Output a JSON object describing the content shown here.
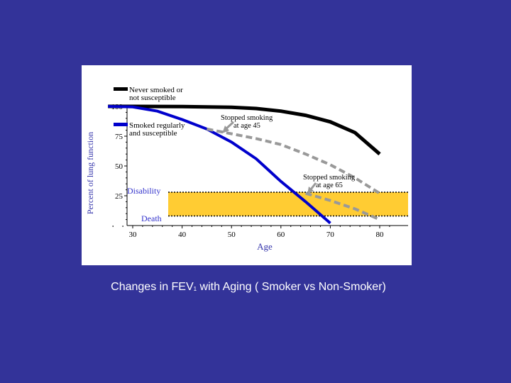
{
  "caption": {
    "prefix": "Changes in  FEV",
    "subscript": "1",
    "suffix": " with Aging ( Smoker vs Non-Smoker)"
  },
  "chart_data": {
    "type": "line",
    "xlabel": "Age",
    "ylabel": "Percent of lung function",
    "xlim": [
      25,
      80
    ],
    "ylim": [
      0,
      100
    ],
    "x_ticks": [
      30,
      40,
      50,
      60,
      70,
      80
    ],
    "y_ticks": [
      25,
      50,
      75,
      100
    ],
    "legend": {
      "never_smoked": [
        "Never smoked or",
        "not susceptible"
      ],
      "smoked": [
        "Smoked regularly",
        "and susceptible"
      ]
    },
    "series": [
      {
        "name": "Never smoked or not susceptible",
        "color": "#000000",
        "style": "solid",
        "points": [
          [
            25,
            100
          ],
          [
            30,
            100
          ],
          [
            40,
            99.8
          ],
          [
            50,
            99.2
          ],
          [
            55,
            98.2
          ],
          [
            60,
            96
          ],
          [
            65,
            92.5
          ],
          [
            70,
            87
          ],
          [
            75,
            78
          ],
          [
            80,
            60
          ]
        ]
      },
      {
        "name": "Smoked regularly and susceptible",
        "color": "#0000cc",
        "style": "solid",
        "points": [
          [
            25,
            100
          ],
          [
            30,
            99.5
          ],
          [
            35,
            96
          ],
          [
            40,
            89
          ],
          [
            45,
            81
          ],
          [
            50,
            70
          ],
          [
            55,
            56
          ],
          [
            60,
            37
          ],
          [
            65,
            20
          ],
          [
            70,
            2
          ]
        ]
      },
      {
        "name": "Stopped smoking at age 45",
        "color": "#999999",
        "style": "dashed",
        "points": [
          [
            45,
            81
          ],
          [
            50,
            77
          ],
          [
            55,
            73
          ],
          [
            60,
            68
          ],
          [
            65,
            60
          ],
          [
            70,
            51
          ],
          [
            75,
            40
          ],
          [
            80,
            27
          ]
        ]
      },
      {
        "name": "Stopped smoking at age 65",
        "color": "#999999",
        "style": "dashed",
        "points": [
          [
            65,
            27
          ],
          [
            70,
            21
          ],
          [
            75,
            14
          ],
          [
            80,
            5
          ]
        ]
      }
    ],
    "annotations": {
      "stopped_45": [
        "Stopped smoking",
        "at age 45"
      ],
      "stopped_65": [
        "Stopped smoking",
        "at age 65"
      ],
      "disability": "Disability",
      "death": "Death"
    },
    "thresholds": [
      {
        "label": "Disability",
        "y": 28
      },
      {
        "label": "Death",
        "y": 8
      }
    ],
    "disability_band_color": "#ffcc33",
    "grid": false
  }
}
